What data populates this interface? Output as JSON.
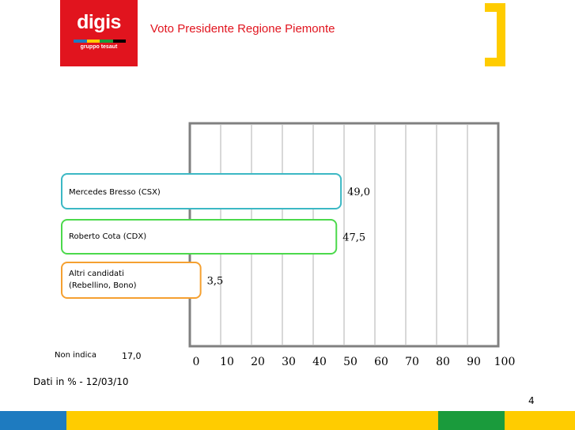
{
  "logo": {
    "brand": "digis",
    "subtitle": "gruppo tesaut"
  },
  "slide": {
    "title": "Voto Presidente Regione Piemonte",
    "page_number": "4"
  },
  "colors": {
    "brand_red": "#e1141e",
    "accent_yellow": "#ffcc00",
    "accent_blue": "#1e7bc0",
    "accent_green": "#1a9b3c"
  },
  "chart_data": {
    "type": "bar",
    "orientation": "horizontal",
    "title": "",
    "xlabel": "",
    "ylabel": "",
    "xlim": [
      0,
      100
    ],
    "grid": true,
    "xticks": [
      "0",
      "10",
      "20",
      "30",
      "40",
      "50",
      "60",
      "70",
      "80",
      "90",
      "100"
    ],
    "categories": [
      {
        "label_lines": [
          "Mercedes Bresso (CSX)"
        ],
        "value": 49.0,
        "value_label": "49,0",
        "color": "#3cb8c4"
      },
      {
        "label_lines": [
          "Roberto Cota (CDX)"
        ],
        "value": 47.5,
        "value_label": "47,5",
        "color": "#4cd94c"
      },
      {
        "label_lines": [
          "Altri candidati",
          "(Rebellino, Bono)"
        ],
        "value": 3.5,
        "value_label": "3,5",
        "color": "#f5a030"
      }
    ],
    "non_indica": {
      "label": "Non indica",
      "value_label": "17,0"
    },
    "note": "Dati in % - 12/03/10"
  }
}
